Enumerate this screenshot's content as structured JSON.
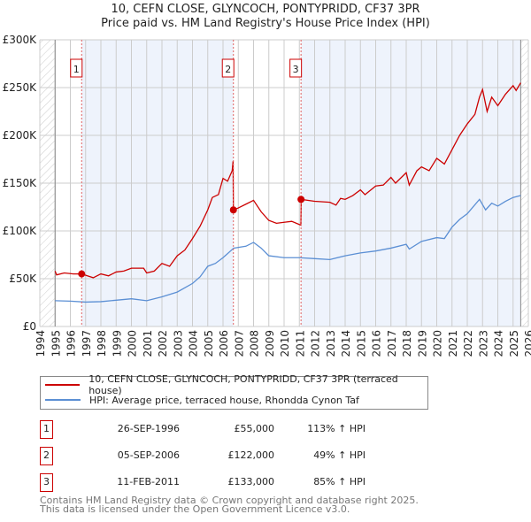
{
  "title": "10, CEFN CLOSE, GLYNCOCH, PONTYPRIDD, CF37 3PR",
  "subtitle": "Price paid vs. HM Land Registry's House Price Index (HPI)",
  "colors": {
    "property": "#cc0000",
    "hpi": "#5b8fd4",
    "shade": "#eef3fc"
  },
  "chart_data": {
    "type": "line",
    "ylim": [
      0,
      300000
    ],
    "xlim": [
      1994,
      2026
    ],
    "yticks": [
      {
        "v": 0,
        "label": "£0"
      },
      {
        "v": 50000,
        "label": "£50K"
      },
      {
        "v": 100000,
        "label": "£100K"
      },
      {
        "v": 150000,
        "label": "£150K"
      },
      {
        "v": 200000,
        "label": "£200K"
      },
      {
        "v": 250000,
        "label": "£250K"
      },
      {
        "v": 300000,
        "label": "£300K"
      }
    ],
    "xticks": [
      "1994",
      "1995",
      "1996",
      "1997",
      "1998",
      "1999",
      "2000",
      "2001",
      "2002",
      "2003",
      "2004",
      "2005",
      "2006",
      "2007",
      "2008",
      "2009",
      "2010",
      "2011",
      "2012",
      "2013",
      "2014",
      "2015",
      "2016",
      "2017",
      "2018",
      "2019",
      "2020",
      "2021",
      "2022",
      "2023",
      "2024",
      "2025",
      "2026"
    ],
    "data_range": [
      1995,
      2025.5
    ],
    "series": [
      {
        "name": "10, CEFN CLOSE, GLYNCOCH, PONTYPRIDD, CF37 3PR (terraced house)",
        "color": "#cc0000",
        "points": [
          [
            1995,
            58000
          ],
          [
            1995.1,
            54000
          ],
          [
            1995.6,
            56000
          ],
          [
            1996.2,
            55000
          ],
          [
            1996.74,
            55000
          ],
          [
            1997.5,
            51000
          ],
          [
            1998,
            55000
          ],
          [
            1998.5,
            53000
          ],
          [
            1999,
            57000
          ],
          [
            1999.5,
            58000
          ],
          [
            2000,
            61000
          ],
          [
            2000.8,
            61000
          ],
          [
            2001,
            56000
          ],
          [
            2001.5,
            58000
          ],
          [
            2002,
            66000
          ],
          [
            2002.5,
            63000
          ],
          [
            2003,
            74000
          ],
          [
            2003.5,
            80000
          ],
          [
            2004,
            92000
          ],
          [
            2004.5,
            105000
          ],
          [
            2005,
            122000
          ],
          [
            2005.3,
            135000
          ],
          [
            2005.7,
            138000
          ],
          [
            2006,
            155000
          ],
          [
            2006.3,
            152000
          ],
          [
            2006.6,
            163000
          ],
          [
            2006.66,
            173000
          ],
          [
            2006.68,
            122000
          ],
          [
            2007,
            124000
          ],
          [
            2007.5,
            128000
          ],
          [
            2008,
            132000
          ],
          [
            2008.5,
            120000
          ],
          [
            2009,
            111000
          ],
          [
            2009.5,
            108000
          ],
          [
            2010,
            109000
          ],
          [
            2010.5,
            110000
          ],
          [
            2011.1,
            106000
          ],
          [
            2011.12,
            133000
          ],
          [
            2012,
            131000
          ],
          [
            2013,
            130000
          ],
          [
            2013.4,
            127000
          ],
          [
            2013.7,
            134000
          ],
          [
            2014,
            133000
          ],
          [
            2014.5,
            137000
          ],
          [
            2015,
            143000
          ],
          [
            2015.3,
            138000
          ],
          [
            2016,
            147000
          ],
          [
            2016.5,
            148000
          ],
          [
            2017,
            156000
          ],
          [
            2017.3,
            150000
          ],
          [
            2018,
            161000
          ],
          [
            2018.2,
            148000
          ],
          [
            2018.7,
            163000
          ],
          [
            2019,
            167000
          ],
          [
            2019.5,
            163000
          ],
          [
            2020,
            176000
          ],
          [
            2020.5,
            170000
          ],
          [
            2021,
            185000
          ],
          [
            2021.5,
            200000
          ],
          [
            2022,
            212000
          ],
          [
            2022.5,
            222000
          ],
          [
            2022.8,
            240000
          ],
          [
            2023,
            248000
          ],
          [
            2023.3,
            225000
          ],
          [
            2023.6,
            240000
          ],
          [
            2024,
            231000
          ],
          [
            2024.5,
            243000
          ],
          [
            2025,
            252000
          ],
          [
            2025.2,
            247000
          ],
          [
            2025.5,
            255000
          ]
        ]
      },
      {
        "name": "HPI: Average price, terraced house, Rhondda Cynon Taf",
        "color": "#5b8fd4",
        "points": [
          [
            1995,
            27000
          ],
          [
            1996,
            26500
          ],
          [
            1997,
            25500
          ],
          [
            1998,
            26000
          ],
          [
            1999,
            27500
          ],
          [
            2000,
            29000
          ],
          [
            2001,
            27000
          ],
          [
            2002,
            31000
          ],
          [
            2003,
            36000
          ],
          [
            2004,
            45000
          ],
          [
            2004.5,
            52000
          ],
          [
            2005,
            63000
          ],
          [
            2005.5,
            66000
          ],
          [
            2006,
            72000
          ],
          [
            2006.7,
            82000
          ],
          [
            2007.5,
            84000
          ],
          [
            2008,
            88000
          ],
          [
            2008.5,
            82000
          ],
          [
            2009,
            74000
          ],
          [
            2010,
            72000
          ],
          [
            2011,
            72000
          ],
          [
            2012,
            71000
          ],
          [
            2013,
            70000
          ],
          [
            2014,
            74000
          ],
          [
            2015,
            77000
          ],
          [
            2016,
            79000
          ],
          [
            2017,
            82000
          ],
          [
            2018,
            86000
          ],
          [
            2018.2,
            81000
          ],
          [
            2019,
            89000
          ],
          [
            2020,
            93000
          ],
          [
            2020.5,
            92000
          ],
          [
            2021,
            104000
          ],
          [
            2021.5,
            112000
          ],
          [
            2022,
            118000
          ],
          [
            2022.8,
            133000
          ],
          [
            2023.2,
            122000
          ],
          [
            2023.6,
            129000
          ],
          [
            2024,
            126000
          ],
          [
            2024.5,
            131000
          ],
          [
            2025,
            135000
          ],
          [
            2025.5,
            137000
          ]
        ]
      }
    ],
    "sales": [
      {
        "n": "1",
        "date": "26-SEP-1996",
        "x": 1996.74,
        "price": "£55,000",
        "value": 55000,
        "hpi": "113% ↑ HPI"
      },
      {
        "n": "2",
        "date": "05-SEP-2006",
        "x": 2006.68,
        "price": "£122,000",
        "value": 122000,
        "hpi": "49% ↑ HPI"
      },
      {
        "n": "3",
        "date": "11-FEB-2011",
        "x": 2011.11,
        "price": "£133,000",
        "value": 133000,
        "hpi": "85% ↑ HPI"
      }
    ]
  },
  "footer": [
    "Contains HM Land Registry data © Crown copyright and database right 2025.",
    "This data is licensed under the Open Government Licence v3.0."
  ]
}
